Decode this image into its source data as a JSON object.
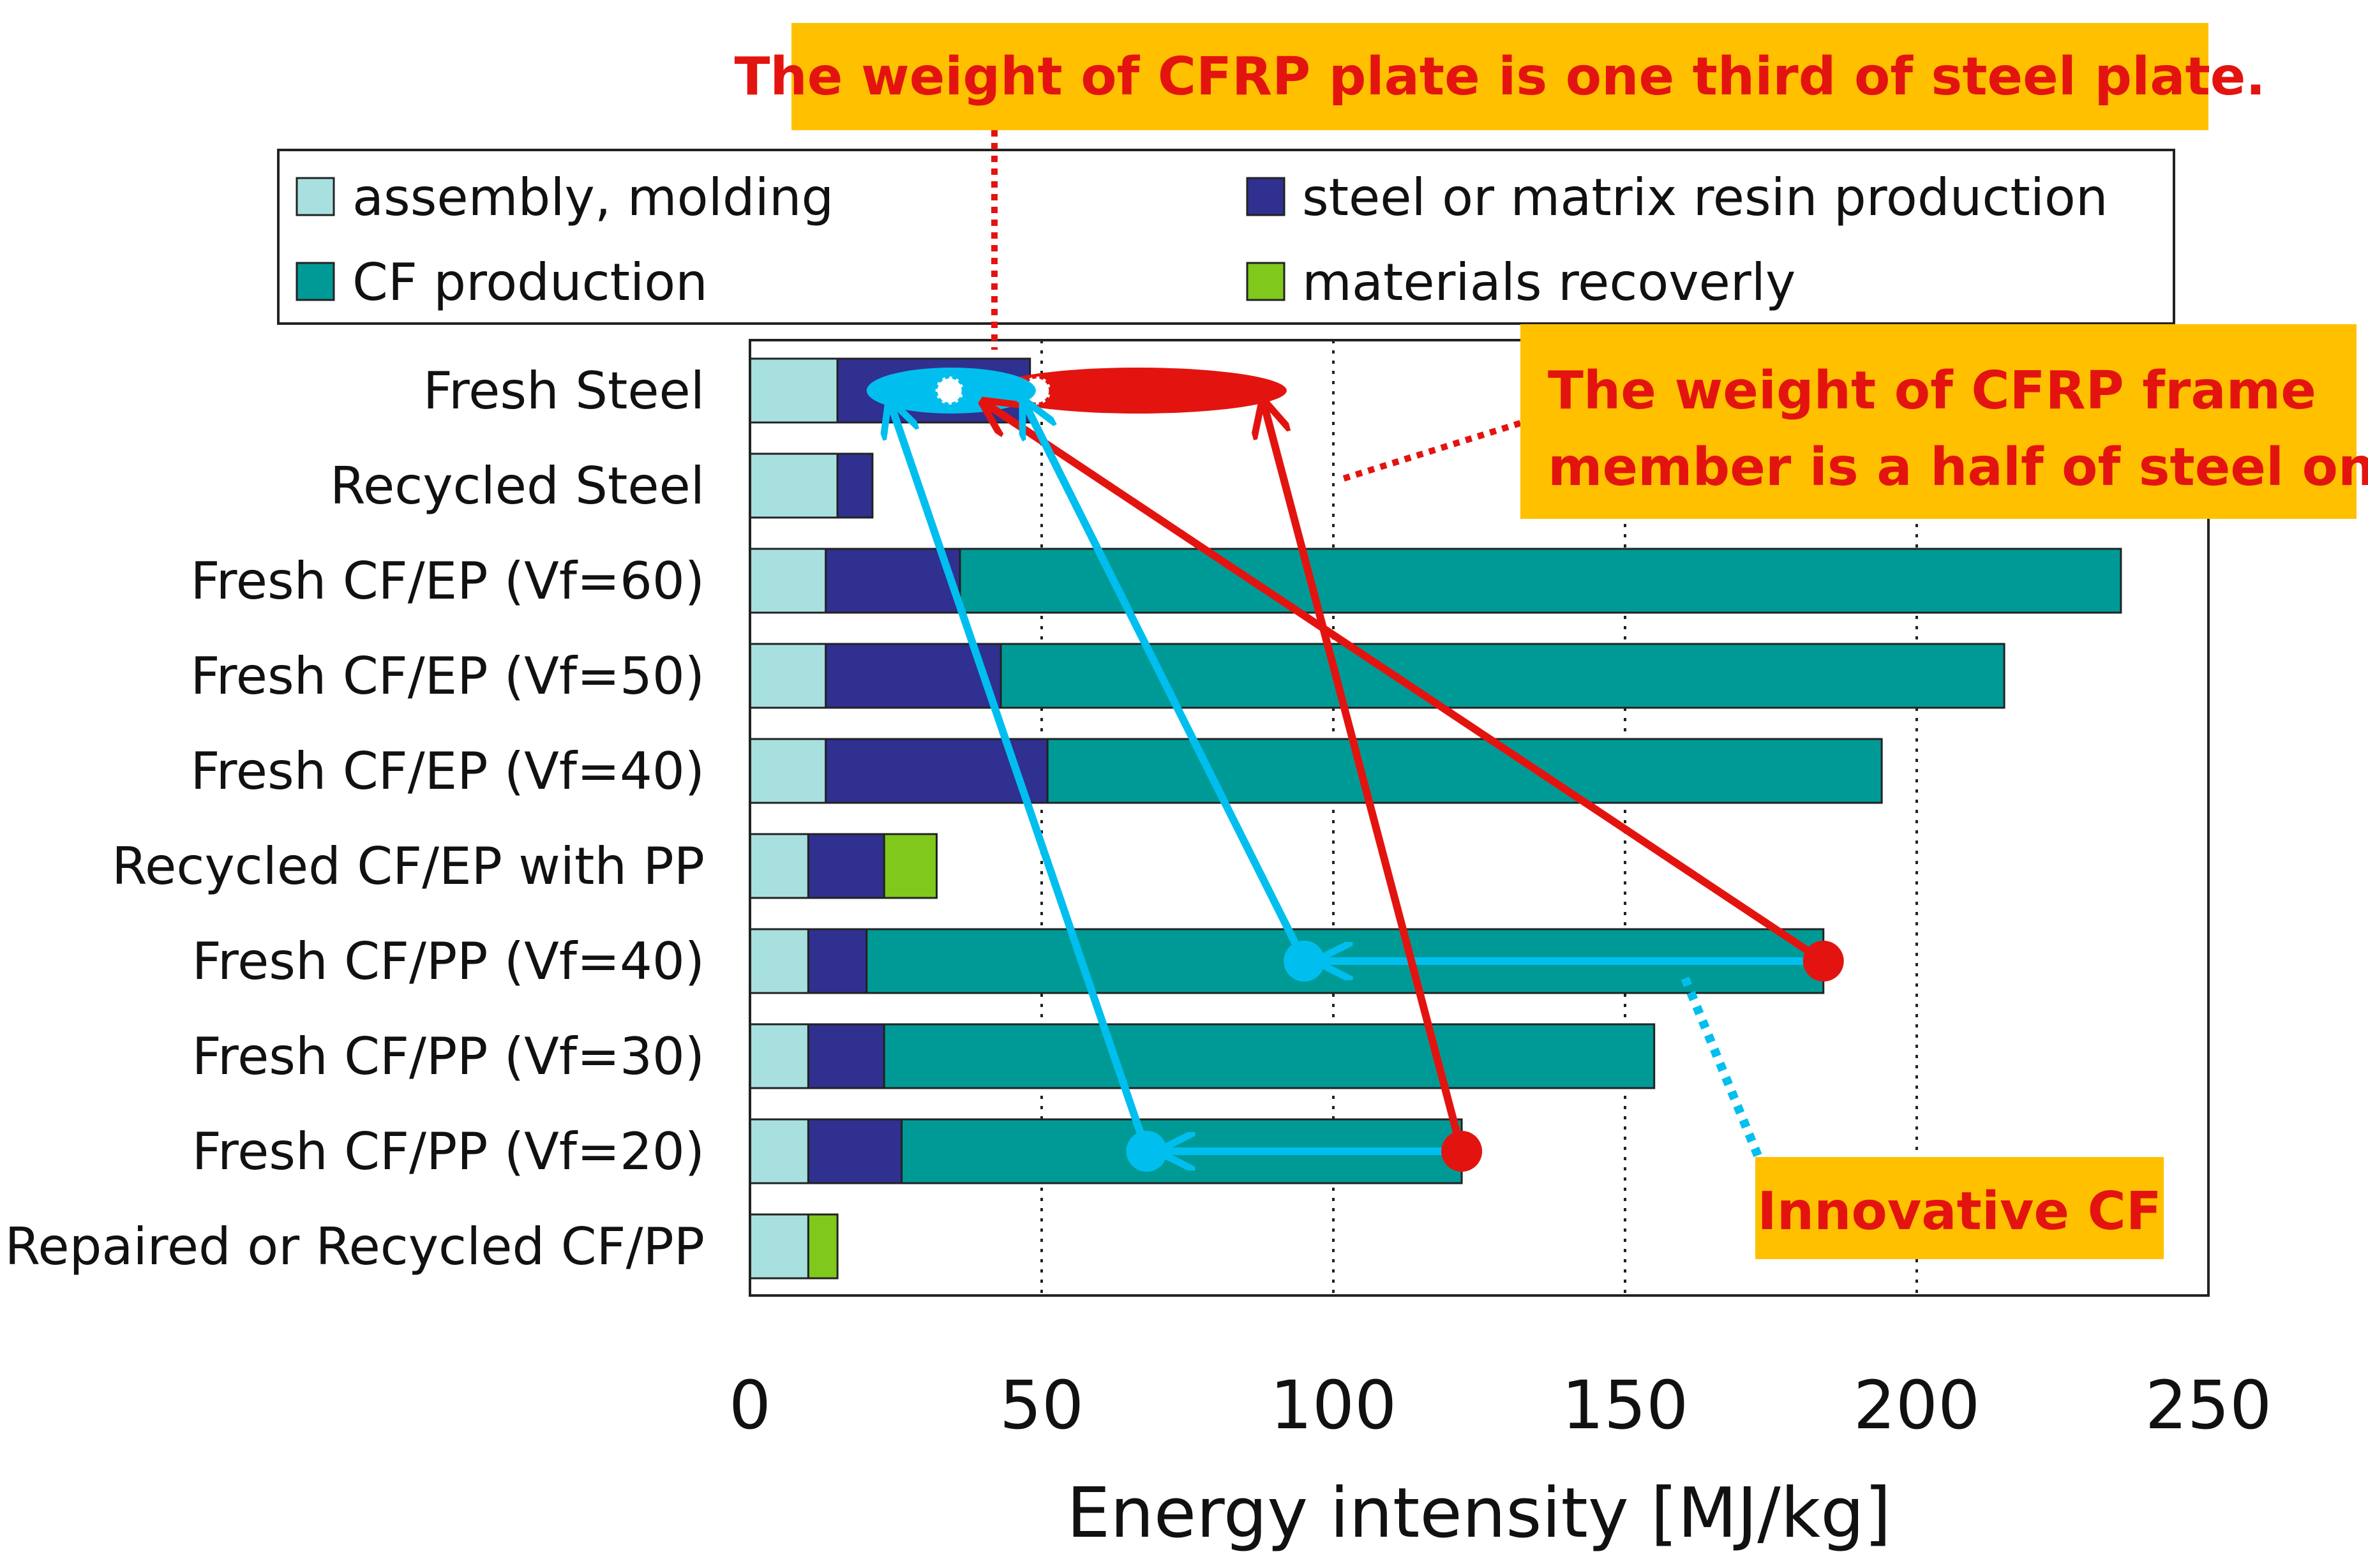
{
  "chart_data": {
    "type": "bar",
    "orientation": "horizontal",
    "stacked": true,
    "title": "",
    "xlabel": "Energy intensity [MJ/kg]",
    "ylabel": "",
    "xlim": [
      0,
      250
    ],
    "xticks": [
      0,
      50,
      100,
      150,
      200,
      250
    ],
    "grid": "vertical dotted",
    "categories": [
      "Fresh Steel",
      "Recycled Steel",
      "Fresh CF/EP (Vf=60)",
      "Fresh CF/EP (Vf=50)",
      "Fresh CF/EP (Vf=40)",
      "Recycled CF/EP with PP",
      "Fresh CF/PP (Vf=40)",
      "Fresh CF/PP (Vf=30)",
      "Fresh CF/PP (Vf=20)",
      "Repaired or Recycled CF/PP"
    ],
    "series": [
      {
        "name": "assembly, molding",
        "color": "#a8e0e0",
        "values": [
          15,
          15,
          13,
          13,
          13,
          10,
          10,
          10,
          10,
          10
        ]
      },
      {
        "name": "steel or matrix resin production",
        "color": "#303090",
        "values": [
          33,
          6,
          23,
          30,
          38,
          13,
          10,
          13,
          16,
          0
        ]
      },
      {
        "name": "CF production",
        "color": "#009a96",
        "values": [
          0,
          0,
          199,
          172,
          143,
          0,
          164,
          132,
          96,
          0
        ]
      },
      {
        "name": "materials recoverly",
        "color": "#80c81c",
        "values": [
          0,
          0,
          0,
          0,
          0,
          9,
          0,
          0,
          0,
          5
        ]
      }
    ],
    "legend": {
      "position": "top",
      "items": [
        "assembly, molding",
        "steel or matrix resin production",
        "CF production",
        "materials recoverly"
      ]
    },
    "annotations": {
      "callouts": [
        {
          "id": "plate",
          "text": "The weight of CFRP plate is one third of steel plate.",
          "bg": "#ffc000",
          "color": "#e3140f"
        },
        {
          "id": "frame",
          "text_lines": [
            "The weight of CFRP frame",
            "member is a half of steel one."
          ],
          "bg": "#ffc000",
          "color": "#e3140f"
        },
        {
          "id": "innovative",
          "text": "Innovative CF",
          "bg": "#ffc000",
          "color": "#e3140f"
        }
      ],
      "markers": [
        {
          "color": "#e3140f",
          "category": "Fresh CF/PP (Vf=40)",
          "value": 184,
          "maps_to_steel_value": 40
        },
        {
          "color": "#00bfef",
          "category": "Fresh CF/PP (Vf=40)",
          "value": 95,
          "maps_to_steel_value": 47
        },
        {
          "color": "#e3140f",
          "category": "Fresh CF/PP (Vf=20)",
          "value": 122,
          "maps_to_steel_value": 88
        },
        {
          "color": "#00bfef",
          "category": "Fresh CF/PP (Vf=20)",
          "value": 68,
          "maps_to_steel_value": 24
        }
      ],
      "reduction_arrows": [
        {
          "category": "Fresh CF/PP (Vf=40)",
          "from": 184,
          "to": 95
        },
        {
          "category": "Fresh CF/PP (Vf=20)",
          "from": 122,
          "to": 68
        }
      ],
      "steel_ellipses": [
        {
          "color": "#e3140f",
          "from": 41,
          "to": 92
        },
        {
          "color": "#00bfef",
          "from": 20,
          "to": 49
        }
      ]
    }
  }
}
